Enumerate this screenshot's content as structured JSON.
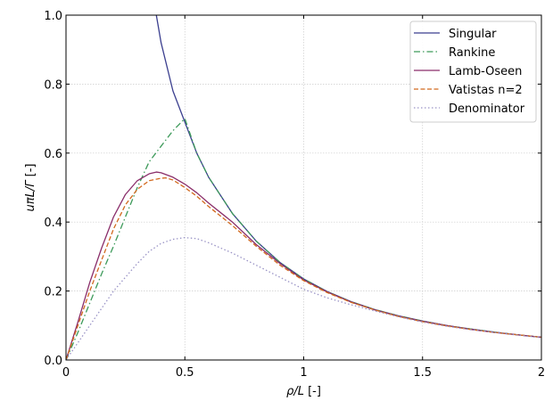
{
  "chart_data": {
    "type": "line",
    "xlabel_main": "ρ/L",
    "xlabel_unit": " [-]",
    "ylabel_main": "uπL/Γ",
    "ylabel_unit": " [-]",
    "xlim": [
      0,
      2
    ],
    "ylim": [
      0,
      1
    ],
    "x_ticks": [
      {
        "value": 0,
        "label": "0"
      },
      {
        "value": 0.5,
        "label": "0.5"
      },
      {
        "value": 1,
        "label": "1"
      },
      {
        "value": 1.5,
        "label": "1.5"
      },
      {
        "value": 2,
        "label": "2"
      }
    ],
    "y_ticks": [
      {
        "value": 0,
        "label": "0.0"
      },
      {
        "value": 0.2,
        "label": "0.2"
      },
      {
        "value": 0.4,
        "label": "0.4"
      },
      {
        "value": 0.6,
        "label": "0.6"
      },
      {
        "value": 0.8,
        "label": "0.8"
      },
      {
        "value": 1.0,
        "label": "1.0"
      }
    ],
    "grid": true,
    "legend_position": "top-right",
    "series": [
      {
        "name": "Singular",
        "color": "#3b3f8f",
        "style": "solid",
        "x": [
          0.38,
          0.4,
          0.45,
          0.5,
          0.55,
          0.6,
          0.7,
          0.8,
          0.9,
          1.0,
          1.1,
          1.2,
          1.3,
          1.4,
          1.5,
          1.6,
          1.7,
          1.8,
          1.9,
          2.0
        ],
        "y": [
          1.0,
          0.92,
          0.78,
          0.69,
          0.6,
          0.53,
          0.425,
          0.345,
          0.283,
          0.235,
          0.198,
          0.169,
          0.146,
          0.128,
          0.113,
          0.1,
          0.09,
          0.081,
          0.073,
          0.066
        ]
      },
      {
        "name": "Rankine",
        "color": "#3d9a5a",
        "style": "dashdot",
        "x": [
          0,
          0.05,
          0.1,
          0.15,
          0.2,
          0.25,
          0.3,
          0.35,
          0.4,
          0.45,
          0.5,
          0.55,
          0.6,
          0.7,
          0.8,
          0.9,
          1.0,
          1.1,
          1.2,
          1.3,
          1.4,
          1.5,
          1.6,
          1.7,
          1.8,
          1.9,
          2.0
        ],
        "y": [
          0,
          0.08,
          0.165,
          0.25,
          0.33,
          0.415,
          0.5,
          0.575,
          0.62,
          0.665,
          0.7,
          0.6,
          0.53,
          0.425,
          0.345,
          0.283,
          0.235,
          0.198,
          0.169,
          0.146,
          0.128,
          0.113,
          0.1,
          0.09,
          0.081,
          0.073,
          0.066
        ]
      },
      {
        "name": "Lamb-Oseen",
        "color": "#8a2e6a",
        "style": "solid",
        "x": [
          0,
          0.05,
          0.1,
          0.15,
          0.2,
          0.25,
          0.3,
          0.35,
          0.38,
          0.4,
          0.45,
          0.5,
          0.55,
          0.6,
          0.7,
          0.8,
          0.9,
          1.0,
          1.1,
          1.2,
          1.3,
          1.4,
          1.5,
          1.6,
          1.7,
          1.8,
          1.9,
          2.0
        ],
        "y": [
          0,
          0.11,
          0.225,
          0.325,
          0.415,
          0.48,
          0.52,
          0.54,
          0.545,
          0.543,
          0.53,
          0.51,
          0.485,
          0.455,
          0.4,
          0.335,
          0.28,
          0.232,
          0.197,
          0.168,
          0.145,
          0.127,
          0.112,
          0.1,
          0.089,
          0.08,
          0.073,
          0.066
        ]
      },
      {
        "name": "Vatistas n=2",
        "color": "#d2691e",
        "style": "dashed",
        "x": [
          0,
          0.05,
          0.1,
          0.15,
          0.2,
          0.25,
          0.3,
          0.35,
          0.4,
          0.42,
          0.45,
          0.5,
          0.55,
          0.6,
          0.7,
          0.8,
          0.9,
          1.0,
          1.1,
          1.2,
          1.3,
          1.4,
          1.5,
          1.6,
          1.7,
          1.8,
          1.9,
          2.0
        ],
        "y": [
          0,
          0.1,
          0.2,
          0.29,
          0.38,
          0.45,
          0.495,
          0.52,
          0.527,
          0.528,
          0.522,
          0.5,
          0.475,
          0.445,
          0.39,
          0.33,
          0.275,
          0.23,
          0.195,
          0.167,
          0.145,
          0.126,
          0.111,
          0.099,
          0.089,
          0.08,
          0.073,
          0.066
        ]
      },
      {
        "name": "Denominator",
        "color": "#9a94c6",
        "style": "dotted",
        "x": [
          0,
          0.05,
          0.1,
          0.15,
          0.2,
          0.25,
          0.3,
          0.35,
          0.4,
          0.45,
          0.5,
          0.55,
          0.6,
          0.7,
          0.8,
          0.9,
          1.0,
          1.1,
          1.2,
          1.3,
          1.4,
          1.5,
          1.6,
          1.7,
          1.8,
          1.9,
          2.0
        ],
        "y": [
          0,
          0.05,
          0.1,
          0.15,
          0.2,
          0.24,
          0.28,
          0.315,
          0.338,
          0.35,
          0.355,
          0.352,
          0.34,
          0.31,
          0.275,
          0.24,
          0.205,
          0.18,
          0.16,
          0.142,
          0.125,
          0.11,
          0.098,
          0.088,
          0.08,
          0.072,
          0.065
        ]
      }
    ]
  }
}
